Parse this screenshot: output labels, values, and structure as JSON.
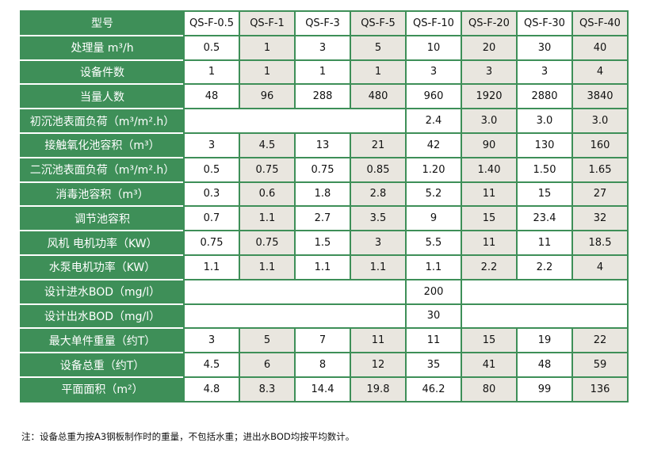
{
  "colors": {
    "header_green": "#3e8f58",
    "alt_cell": "#e9e6df"
  },
  "table": {
    "header": {
      "label": "型号",
      "models": [
        "QS-F-0.5",
        "QS-F-1",
        "QS-F-3",
        "QS-F-5",
        "QS-F-10",
        "QS-F-20",
        "QS-F-30",
        "QS-F-40"
      ]
    },
    "rows": [
      {
        "label": "处理量 m³/h",
        "cells": [
          {
            "v": "0.5"
          },
          {
            "v": "1"
          },
          {
            "v": "3"
          },
          {
            "v": "5"
          },
          {
            "v": "10"
          },
          {
            "v": "20"
          },
          {
            "v": "30"
          },
          {
            "v": "40"
          }
        ]
      },
      {
        "label": "设备件数",
        "cells": [
          {
            "v": "1"
          },
          {
            "v": "1"
          },
          {
            "v": "1"
          },
          {
            "v": "1"
          },
          {
            "v": "3"
          },
          {
            "v": "3"
          },
          {
            "v": "3"
          },
          {
            "v": "4"
          }
        ]
      },
      {
        "label": "当量人数",
        "cells": [
          {
            "v": "48"
          },
          {
            "v": "96"
          },
          {
            "v": "288"
          },
          {
            "v": "480"
          },
          {
            "v": "960"
          },
          {
            "v": "1920"
          },
          {
            "v": "2880"
          },
          {
            "v": "3840"
          }
        ]
      },
      {
        "label": "初沉池表面负荷（m³/m².h）",
        "cells": [
          {
            "v": "",
            "span": 4
          },
          {
            "v": "2.4"
          },
          {
            "v": "3.0"
          },
          {
            "v": "3.0"
          },
          {
            "v": "3.0"
          }
        ]
      },
      {
        "label": "接触氧化池容积（m³）",
        "cells": [
          {
            "v": "3"
          },
          {
            "v": "4.5"
          },
          {
            "v": "13"
          },
          {
            "v": "21"
          },
          {
            "v": "42"
          },
          {
            "v": "90"
          },
          {
            "v": "130"
          },
          {
            "v": "160"
          }
        ]
      },
      {
        "label": "二沉池表面负荷（m³/m².h）",
        "cells": [
          {
            "v": "0.5"
          },
          {
            "v": "0.75"
          },
          {
            "v": "0.75"
          },
          {
            "v": "0.85"
          },
          {
            "v": "1.20"
          },
          {
            "v": "1.40"
          },
          {
            "v": "1.50"
          },
          {
            "v": "1.65"
          }
        ]
      },
      {
        "label": "消毒池容积（m³）",
        "cells": [
          {
            "v": "0.3"
          },
          {
            "v": "0.6"
          },
          {
            "v": "1.8"
          },
          {
            "v": "2.8"
          },
          {
            "v": "5.2"
          },
          {
            "v": "11"
          },
          {
            "v": "15"
          },
          {
            "v": "27"
          }
        ]
      },
      {
        "label": "调节池容积",
        "cells": [
          {
            "v": "0.7"
          },
          {
            "v": "1.1"
          },
          {
            "v": "2.7"
          },
          {
            "v": "3.5"
          },
          {
            "v": "9"
          },
          {
            "v": "15"
          },
          {
            "v": "23.4"
          },
          {
            "v": "32"
          }
        ]
      },
      {
        "label": "风机 电机功率（KW）",
        "cells": [
          {
            "v": "0.75"
          },
          {
            "v": "0.75"
          },
          {
            "v": "1.5"
          },
          {
            "v": "3"
          },
          {
            "v": "5.5"
          },
          {
            "v": "11"
          },
          {
            "v": "11"
          },
          {
            "v": "18.5"
          }
        ]
      },
      {
        "label": "水泵电机功率（KW）",
        "cells": [
          {
            "v": "1.1"
          },
          {
            "v": "1.1"
          },
          {
            "v": "1.1"
          },
          {
            "v": "1.1"
          },
          {
            "v": "1.1"
          },
          {
            "v": "2.2"
          },
          {
            "v": "2.2"
          },
          {
            "v": "4"
          }
        ]
      },
      {
        "label": "设计进水BOD（mg/l）",
        "cells": [
          {
            "v": "",
            "span": 4
          },
          {
            "v": "200",
            "plain": true
          },
          {
            "v": "",
            "span": 3
          }
        ]
      },
      {
        "label": "设计出水BOD（mg/l）",
        "cells": [
          {
            "v": "",
            "span": 4
          },
          {
            "v": "30",
            "plain": true
          },
          {
            "v": "",
            "span": 3
          }
        ]
      },
      {
        "label": "最大单件重量（约T）",
        "cells": [
          {
            "v": "3"
          },
          {
            "v": "5"
          },
          {
            "v": "7"
          },
          {
            "v": "11"
          },
          {
            "v": "11"
          },
          {
            "v": "15"
          },
          {
            "v": "19"
          },
          {
            "v": "22"
          }
        ]
      },
      {
        "label": "设备总重（约T）",
        "cells": [
          {
            "v": "4.5"
          },
          {
            "v": "6"
          },
          {
            "v": "8"
          },
          {
            "v": "12"
          },
          {
            "v": "35"
          },
          {
            "v": "41"
          },
          {
            "v": "48"
          },
          {
            "v": "59"
          }
        ]
      },
      {
        "label": "平面面积（m²）",
        "cells": [
          {
            "v": "4.8"
          },
          {
            "v": "8.3"
          },
          {
            "v": "14.4"
          },
          {
            "v": "19.8"
          },
          {
            "v": "46.2"
          },
          {
            "v": "80"
          },
          {
            "v": "99"
          },
          {
            "v": "136"
          }
        ]
      }
    ]
  },
  "note": "注：设备总重为按A3钢板制作时的重量，不包括水重；进出水BOD均按平均数计。"
}
